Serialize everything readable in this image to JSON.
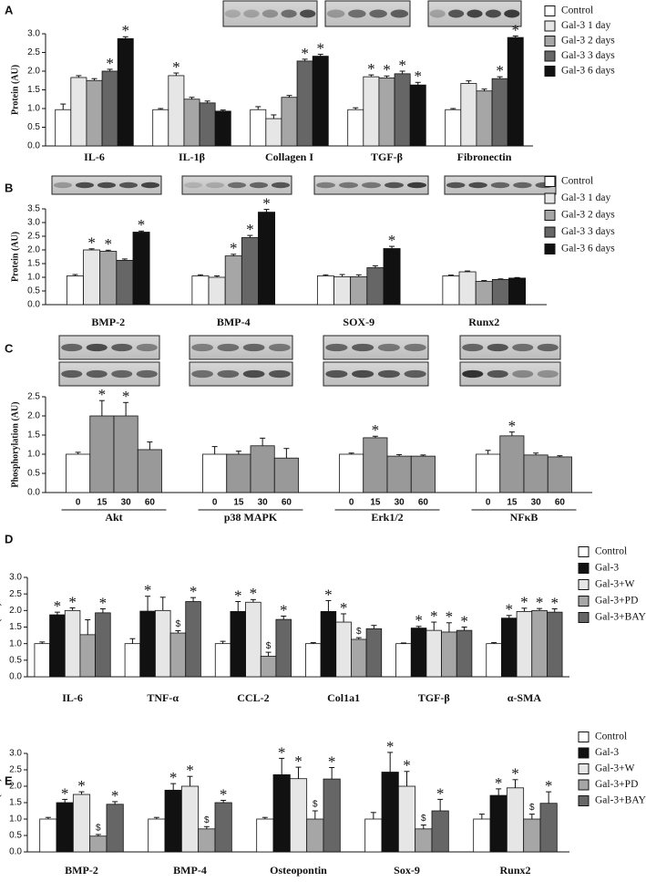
{
  "chart_data": [
    {
      "type": "bar",
      "panel": "A",
      "ylabel": "Protein (AU)",
      "legend": "right",
      "categories": [
        "IL-6",
        "IL-1β",
        "Collagen I",
        "TGF-β",
        "Fibronectin"
      ],
      "ylim": [
        0,
        3
      ],
      "yticks": [
        {
          "value": 0,
          "label": "0.0"
        },
        {
          "value": 0.5,
          "label": "0.5"
        },
        {
          "value": 1,
          "label": "1.0"
        },
        {
          "value": 1.5,
          "label": "1.5"
        },
        {
          "value": 2,
          "label": "2.0"
        },
        {
          "value": 2.5,
          "label": "2.5"
        },
        {
          "value": 3,
          "label": "3.0"
        }
      ],
      "series": [
        {
          "name": "Control",
          "color": "#ffffff",
          "values": [
            0.97,
            0.97,
            0.97,
            0.97,
            0.97
          ],
          "errors": [
            0.15,
            0.03,
            0.08,
            0.05,
            0.03
          ]
        },
        {
          "name": "Gal-3 1 day",
          "color": "#e6e6e6",
          "values": [
            1.83,
            1.88,
            0.73,
            1.85,
            1.67
          ],
          "errors": [
            0.05,
            0.07,
            0.1,
            0.05,
            0.07
          ],
          "annotations": [
            null,
            "*",
            null,
            "*",
            null
          ]
        },
        {
          "name": "Gal-3 2 days",
          "color": "#a6a6a6",
          "values": [
            1.75,
            1.25,
            1.3,
            1.82,
            1.47
          ],
          "errors": [
            0.05,
            0.05,
            0.05,
            0.05,
            0.05
          ],
          "annotations": [
            null,
            null,
            null,
            "*",
            null
          ]
        },
        {
          "name": "Gal-3 3 days",
          "color": "#666666",
          "values": [
            2.0,
            1.15,
            2.27,
            1.93,
            1.8
          ],
          "errors": [
            0.05,
            0.05,
            0.05,
            0.07,
            0.05
          ],
          "annotations": [
            "*",
            null,
            "*",
            "*",
            "*"
          ]
        },
        {
          "name": "Gal-3 6 days",
          "color": "#111111",
          "values": [
            2.87,
            0.93,
            2.4,
            1.63,
            2.9
          ],
          "errors": [
            0.05,
            0.03,
            0.05,
            0.07,
            0.04
          ],
          "annotations": [
            "*",
            null,
            "*",
            "*",
            "*"
          ]
        }
      ]
    },
    {
      "type": "bar",
      "panel": "B",
      "ylabel": "Protein (AU)",
      "legend": "right",
      "categories": [
        "BMP-2",
        "BMP-4",
        "SOX-9",
        "Runx2"
      ],
      "ylim": [
        0,
        3.5
      ],
      "yticks": [
        {
          "value": 0,
          "label": "0.0"
        },
        {
          "value": 0.5,
          "label": "0.5"
        },
        {
          "value": 1,
          "label": "1.0"
        },
        {
          "value": 1.5,
          "label": "1.5"
        },
        {
          "value": 2,
          "label": "2.0"
        },
        {
          "value": 2.5,
          "label": "2.5"
        },
        {
          "value": 3,
          "label": "3.0"
        },
        {
          "value": 3.5,
          "label": "3.5"
        }
      ],
      "series": [
        {
          "name": "Control",
          "color": "#ffffff",
          "values": [
            1.05,
            1.05,
            1.05,
            1.05
          ],
          "errors": [
            0.05,
            0.04,
            0.04,
            0.03
          ]
        },
        {
          "name": "Gal-3 1 day",
          "color": "#e6e6e6",
          "values": [
            2.0,
            1.0,
            1.02,
            1.2
          ],
          "errors": [
            0.04,
            0.05,
            0.08,
            0.03
          ],
          "annotations": [
            "*",
            null,
            null,
            null
          ]
        },
        {
          "name": "Gal-3 2 days",
          "color": "#a6a6a6",
          "values": [
            1.95,
            1.78,
            1.02,
            0.85
          ],
          "errors": [
            0.04,
            0.06,
            0.07,
            0.03
          ],
          "annotations": [
            "*",
            "*",
            null,
            null
          ]
        },
        {
          "name": "Gal-3 3 days",
          "color": "#666666",
          "values": [
            1.62,
            2.45,
            1.35,
            0.92
          ],
          "errors": [
            0.05,
            0.08,
            0.07,
            0.02
          ],
          "annotations": [
            null,
            "*",
            null,
            null
          ]
        },
        {
          "name": "Gal-3 6 days",
          "color": "#111111",
          "values": [
            2.65,
            3.38,
            2.05,
            0.97
          ],
          "errors": [
            0.04,
            0.1,
            0.08,
            0.02
          ],
          "annotations": [
            "*",
            "*",
            "*",
            null
          ]
        }
      ]
    },
    {
      "type": "bar",
      "panel": "C",
      "ylabel": "Phosphorylation (AU)",
      "legend": false,
      "categories": [
        "Akt",
        "p38 MAPK",
        "Erk1/2",
        "NFκB"
      ],
      "ylim": [
        0,
        2.5
      ],
      "yticks": [
        {
          "value": 0,
          "label": "0.0"
        },
        {
          "value": 0.5,
          "label": "0.5"
        },
        {
          "value": 1,
          "label": "1.0"
        },
        {
          "value": 1.5,
          "label": "1.5"
        },
        {
          "value": 2,
          "label": "2.0"
        },
        {
          "value": 2.5,
          "label": "2.5"
        }
      ],
      "series": [
        {
          "name": "0",
          "color": "#ffffff",
          "values": [
            1.0,
            1.0,
            1.0,
            1.0
          ],
          "errors": [
            0.05,
            0.2,
            0.03,
            0.1
          ]
        },
        {
          "name": "15",
          "color": "#999999",
          "values": [
            2.0,
            1.0,
            1.43,
            1.48
          ],
          "errors": [
            0.4,
            0.08,
            0.04,
            0.1
          ],
          "annotations": [
            "*",
            null,
            "*",
            "*"
          ]
        },
        {
          "name": "30",
          "color": "#999999",
          "values": [
            2.0,
            1.22,
            0.95,
            0.98
          ],
          "errors": [
            0.35,
            0.2,
            0.04,
            0.05
          ],
          "annotations": [
            "*",
            null,
            null,
            null
          ]
        },
        {
          "name": "60",
          "color": "#999999",
          "values": [
            1.12,
            0.9,
            0.95,
            0.93
          ],
          "errors": [
            0.2,
            0.25,
            0.03,
            0.03
          ]
        }
      ]
    },
    {
      "type": "bar",
      "panel": "D",
      "ylabel": "mRNA (AU)",
      "legend": "right",
      "categories": [
        "IL-6",
        "TNF-α",
        "CCL-2",
        "Col1a1",
        "TGF-β",
        "α-SMA"
      ],
      "ylim": [
        0,
        3
      ],
      "yticks": [
        {
          "value": 0,
          "label": "0.0"
        },
        {
          "value": 0.5,
          "label": "0.5"
        },
        {
          "value": 1,
          "label": "1.0"
        },
        {
          "value": 1.5,
          "label": "1.5"
        },
        {
          "value": 2,
          "label": "2.0"
        },
        {
          "value": 2.5,
          "label": "2.5"
        },
        {
          "value": 3,
          "label": "3.0"
        }
      ],
      "series": [
        {
          "name": "Control",
          "color": "#ffffff",
          "values": [
            1.0,
            1.0,
            1.0,
            1.0,
            1.0,
            1.0
          ],
          "errors": [
            0.05,
            0.15,
            0.07,
            0.03,
            0.02,
            0.03
          ]
        },
        {
          "name": "Gal-3",
          "color": "#111111",
          "values": [
            1.87,
            1.98,
            1.97,
            1.97,
            1.47,
            1.77
          ],
          "errors": [
            0.08,
            0.45,
            0.3,
            0.33,
            0.05,
            0.08
          ],
          "annotations": [
            "*",
            "*",
            "*",
            "*",
            "*",
            "*"
          ]
        },
        {
          "name": "Gal-3+W",
          "color": "#e6e6e6",
          "values": [
            2.0,
            2.0,
            2.25,
            1.65,
            1.4,
            1.97
          ],
          "errors": [
            0.08,
            0.4,
            0.08,
            0.25,
            0.25,
            0.1
          ],
          "annotations": [
            "*",
            null,
            "*",
            "*",
            "*",
            "*"
          ]
        },
        {
          "name": "Gal-3+PD",
          "color": "#a6a6a6",
          "values": [
            1.27,
            1.32,
            0.62,
            1.13,
            1.35,
            2.0
          ],
          "errors": [
            0.45,
            0.07,
            0.12,
            0.05,
            0.28,
            0.06
          ],
          "annotations": [
            null,
            "$",
            "$",
            "$",
            "*",
            "*"
          ]
        },
        {
          "name": "Gal-3+BAY",
          "color": "#666666",
          "values": [
            1.93,
            2.27,
            1.73,
            1.45,
            1.4,
            1.95
          ],
          "errors": [
            0.12,
            0.12,
            0.1,
            0.1,
            0.1,
            0.1
          ],
          "annotations": [
            "*",
            "*",
            "*",
            null,
            "*",
            "*"
          ]
        }
      ]
    },
    {
      "type": "bar",
      "panel": "E",
      "ylabel": "mRNA (AU)",
      "legend": "right",
      "categories": [
        "BMP-2",
        "BMP-4",
        "Osteopontin",
        "Sox-9",
        "Runx2"
      ],
      "ylim": [
        0,
        3
      ],
      "yticks": [
        {
          "value": 0,
          "label": "0.0"
        },
        {
          "value": 0.5,
          "label": "0.5"
        },
        {
          "value": 1,
          "label": "1.0"
        },
        {
          "value": 1.5,
          "label": "1.5"
        },
        {
          "value": 2,
          "label": "2.0"
        },
        {
          "value": 2.5,
          "label": "2.5"
        },
        {
          "value": 3,
          "label": "3.0"
        }
      ],
      "series": [
        {
          "name": "Control",
          "color": "#ffffff",
          "values": [
            1.0,
            1.0,
            1.0,
            1.0,
            1.0
          ],
          "errors": [
            0.05,
            0.05,
            0.05,
            0.2,
            0.15
          ]
        },
        {
          "name": "Gal-3",
          "color": "#111111",
          "values": [
            1.5,
            1.88,
            2.35,
            2.43,
            1.72
          ],
          "errors": [
            0.1,
            0.2,
            0.5,
            0.6,
            0.2
          ],
          "annotations": [
            "*",
            "*",
            "*",
            "*",
            "*"
          ]
        },
        {
          "name": "Gal-3+W",
          "color": "#e6e6e6",
          "values": [
            1.75,
            2.0,
            2.23,
            2.0,
            1.95
          ],
          "errors": [
            0.08,
            0.3,
            0.35,
            0.45,
            0.25
          ],
          "annotations": [
            "*",
            "*",
            "*",
            "*",
            "*"
          ]
        },
        {
          "name": "Gal-3+PD",
          "color": "#a6a6a6",
          "values": [
            0.48,
            0.7,
            1.0,
            0.7,
            1.0
          ],
          "errors": [
            0.05,
            0.07,
            0.25,
            0.12,
            0.15
          ],
          "annotations": [
            "$",
            "$",
            "$",
            "$",
            "$"
          ]
        },
        {
          "name": "Gal-3+BAY",
          "color": "#666666",
          "values": [
            1.45,
            1.5,
            2.22,
            1.25,
            1.48
          ],
          "errors": [
            0.08,
            0.07,
            0.35,
            0.35,
            0.35
          ],
          "annotations": [
            "*",
            "*",
            "*",
            "*",
            "*"
          ]
        }
      ]
    }
  ]
}
